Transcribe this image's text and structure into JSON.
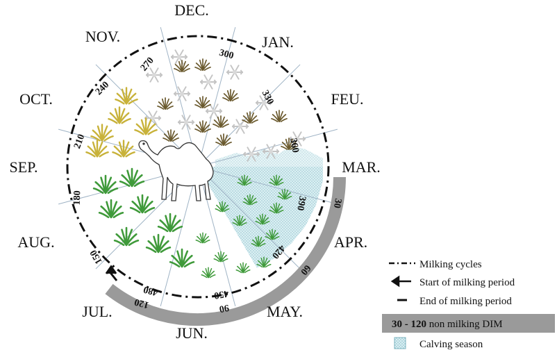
{
  "months": [
    "DEC.",
    "JAN.",
    "FEU.",
    "MAR.",
    "APR.",
    "MAY.",
    "JUN.",
    "JUL.",
    "AUG.",
    "SEP.",
    "OCT.",
    "NOV."
  ],
  "inner_days": [
    "270",
    "300",
    "330",
    "360",
    "390",
    "420",
    "450",
    "480",
    "150",
    "180",
    "210",
    "240"
  ],
  "arc_days": [
    "30",
    "60",
    "90",
    "120"
  ],
  "legend": {
    "milking_cycles": "Milking  cycles",
    "start": "Start of milking period",
    "end": "End of milking period",
    "non_milking_bold": "30 - 120",
    "non_milking_rest": " non milking DIM",
    "calving": "Calving season"
  },
  "colors": {
    "non_milking_band": "#9a9a9a",
    "calving_fill": "#bfe0e6",
    "grass_green": "#3f9a3a",
    "grass_yellow": "#c8b23a",
    "grass_dry": "#6b5a2e",
    "snow": "#c8c8c8"
  }
}
